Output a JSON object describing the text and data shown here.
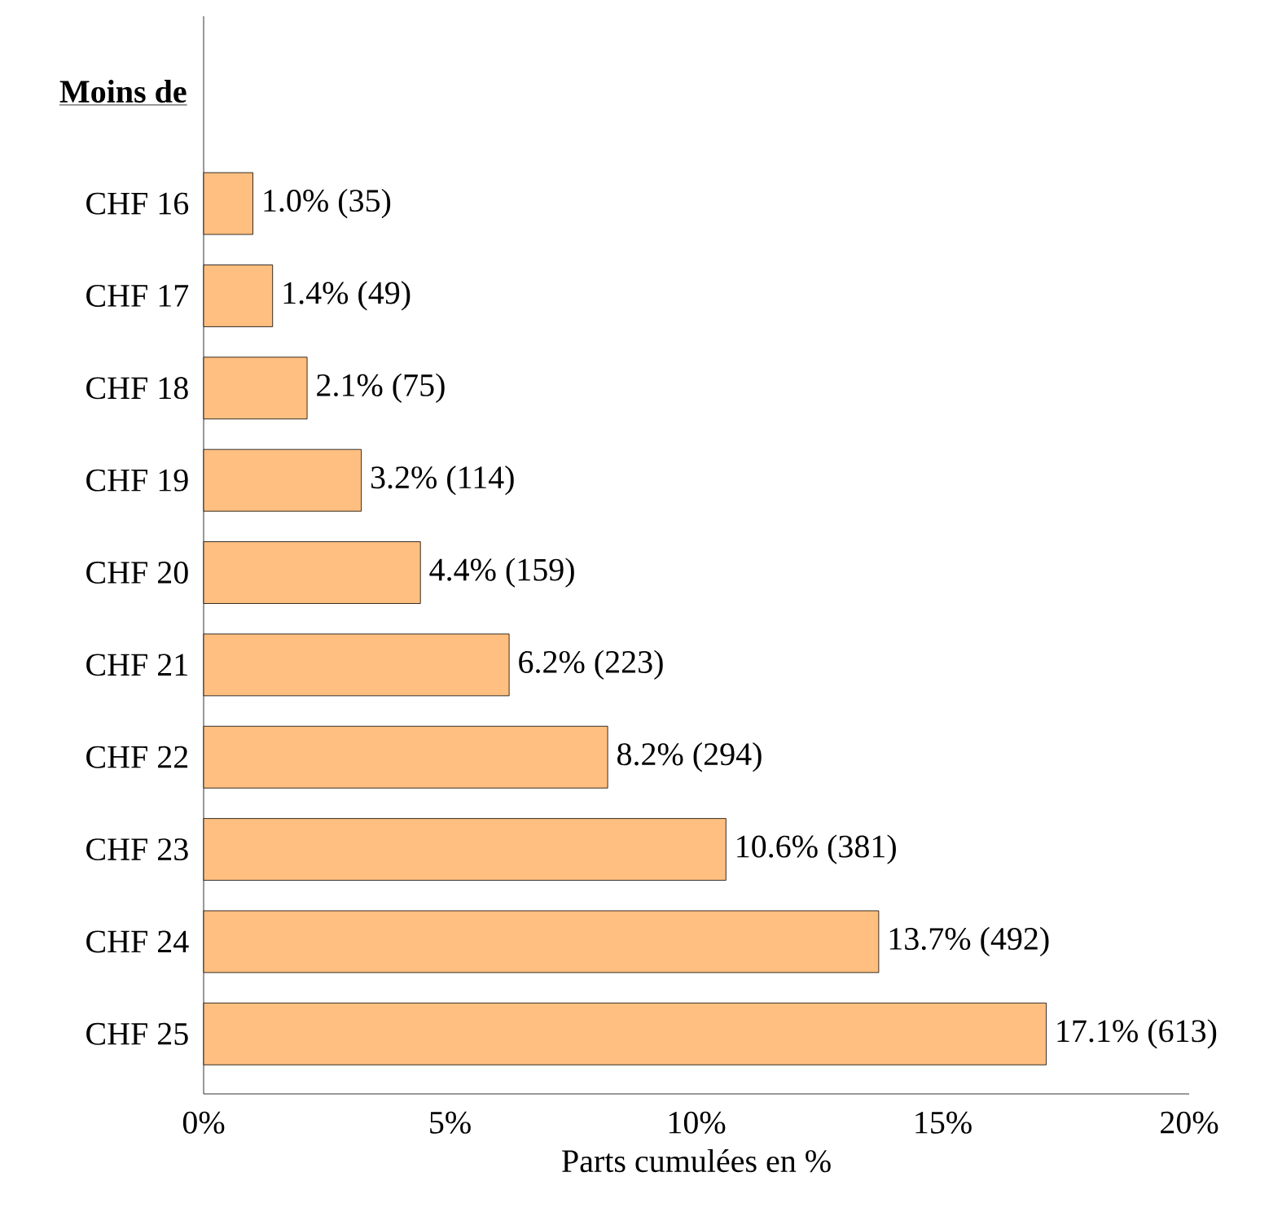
{
  "chart_data": {
    "type": "bar",
    "orientation": "horizontal",
    "ylabel": "Moins de",
    "xlabel": "Parts cumulées en %",
    "categories": [
      "CHF 16",
      "CHF 17",
      "CHF 18",
      "CHF 19",
      "CHF 20",
      "CHF 21",
      "CHF 22",
      "CHF 23",
      "CHF 24",
      "CHF 25"
    ],
    "values": [
      1.0,
      1.4,
      2.1,
      3.2,
      4.4,
      6.2,
      8.2,
      10.6,
      13.7,
      17.1
    ],
    "value_labels": [
      "1.0% (35)",
      "1.4% (49)",
      "2.1% (75)",
      "3.2% (114)",
      "4.4% (159)",
      "6.2% (223)",
      "8.2% (294)",
      "10.6% (381)",
      "13.7% (492)",
      "17.1% (613)"
    ],
    "color": "#ffbf80",
    "xlim": [
      0,
      20
    ],
    "xticks": [
      {
        "value": 0,
        "label": "0%"
      },
      {
        "value": 5,
        "label": "5%"
      },
      {
        "value": 10,
        "label": "10%"
      },
      {
        "value": 15,
        "label": "15%"
      },
      {
        "value": 20,
        "label": "20%"
      }
    ],
    "grid": false
  }
}
